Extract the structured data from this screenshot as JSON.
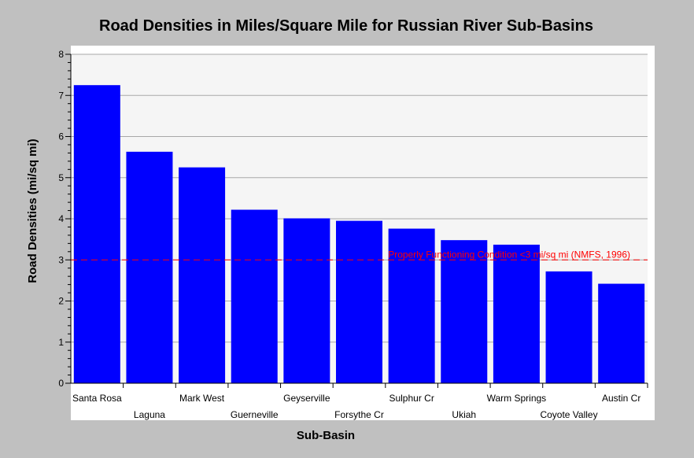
{
  "chart_data": {
    "type": "bar",
    "title": "Road Densities in Miles/Square Mile for Russian River Sub-Basins",
    "xlabel": "Sub-Basin",
    "ylabel": "Road Densities (mi/sq mi)",
    "ylim": [
      0,
      8
    ],
    "yticks": [
      0,
      1,
      2,
      3,
      4,
      5,
      6,
      7,
      8
    ],
    "grid": true,
    "categories": [
      "Santa Rosa",
      "Laguna",
      "Mark West",
      "Guerneville",
      "Geyserville",
      "Forsythe Cr",
      "Sulphur Cr",
      "Ukiah",
      "Warm Springs",
      "Coyote Valley",
      "Austin Cr"
    ],
    "values": [
      7.25,
      5.63,
      5.25,
      4.22,
      4.01,
      3.95,
      3.76,
      3.48,
      3.37,
      2.72,
      2.42
    ],
    "bar_color": "#0000ff",
    "reference_line": {
      "value": 3,
      "label": "Properly Functioning Condition <3 mi/sq mi (NMFS, 1996)",
      "color": "#ff0000",
      "style": "dashed"
    }
  }
}
